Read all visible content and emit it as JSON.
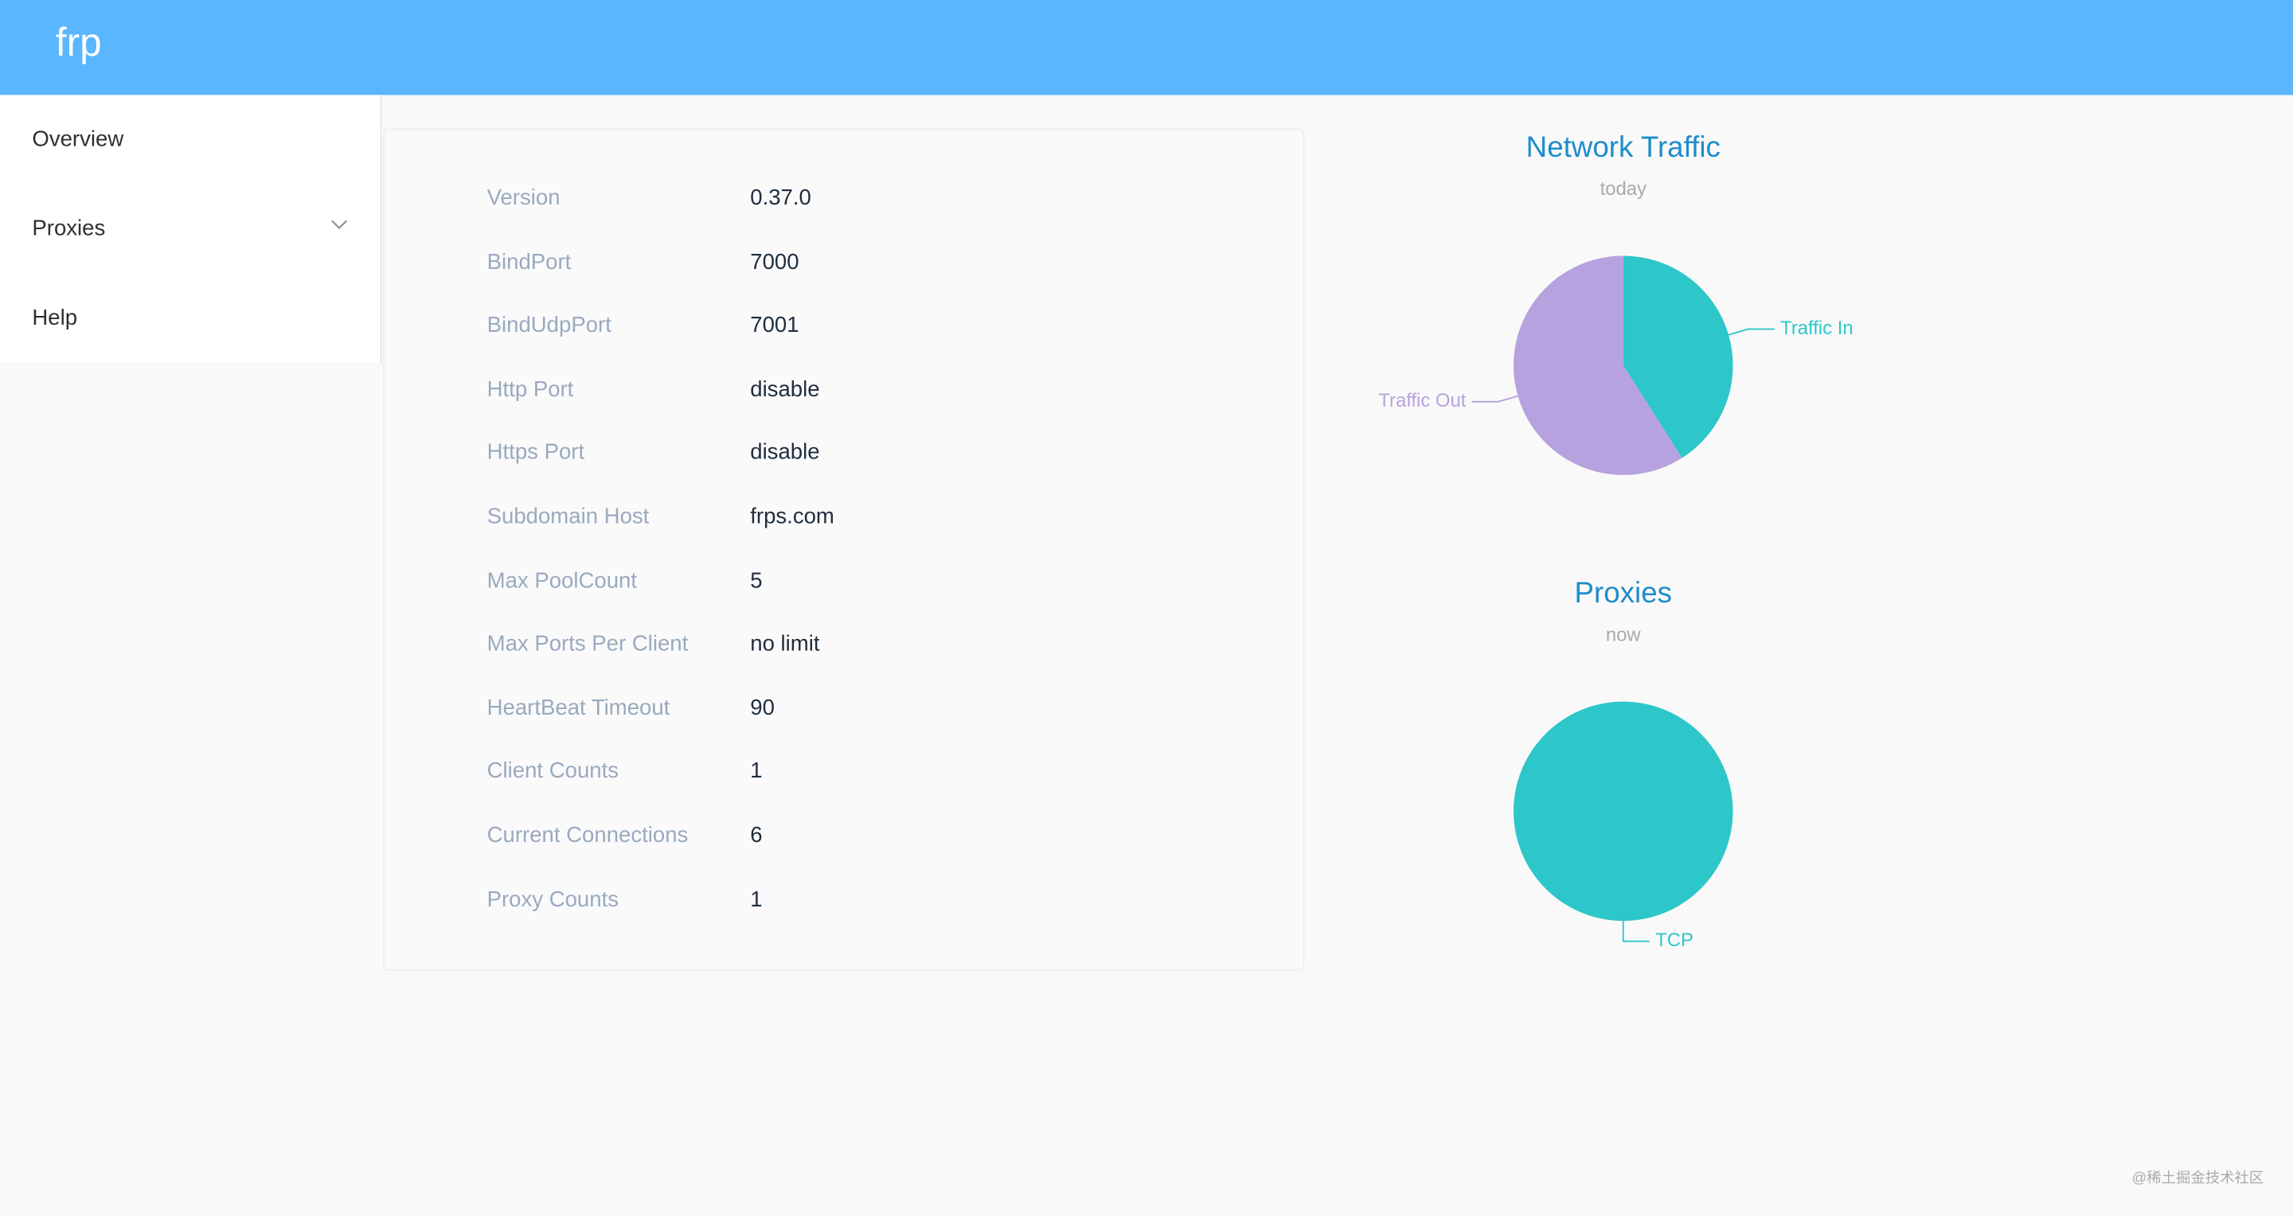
{
  "header": {
    "title": "frp"
  },
  "menu": [
    "Overview",
    "Proxies",
    "Help"
  ],
  "info": {
    "rows": [
      [
        "Version",
        "0.37.0"
      ],
      [
        "BindPort",
        "7000"
      ],
      [
        "BindUdpPort",
        "7001"
      ],
      [
        "Http Port",
        "disable"
      ],
      [
        "Https Port",
        "disable"
      ],
      [
        "Subdomain Host",
        "frps.com"
      ],
      [
        "Max PoolCount",
        "5"
      ],
      [
        "Max Ports Per Client",
        "no limit"
      ],
      [
        "HeartBeat Timeout",
        "90"
      ],
      [
        "Client Counts",
        "1"
      ],
      [
        "Current Connections",
        "6"
      ],
      [
        "Proxy Counts",
        "1"
      ]
    ]
  },
  "chart_data": [
    {
      "type": "pie",
      "title": "Network Traffic",
      "subtitle": "today",
      "categories": [
        "Traffic In",
        "Traffic Out"
      ],
      "values": [
        41,
        59
      ],
      "colors": [
        "#2ec7c9",
        "#b6a2de"
      ]
    },
    {
      "type": "pie",
      "title": "Proxies",
      "subtitle": "now",
      "categories": [
        "TCP"
      ],
      "values": [
        1
      ],
      "colors": [
        "#2ec7c9"
      ]
    }
  ],
  "watermark": "@稀土掘金技术社区"
}
